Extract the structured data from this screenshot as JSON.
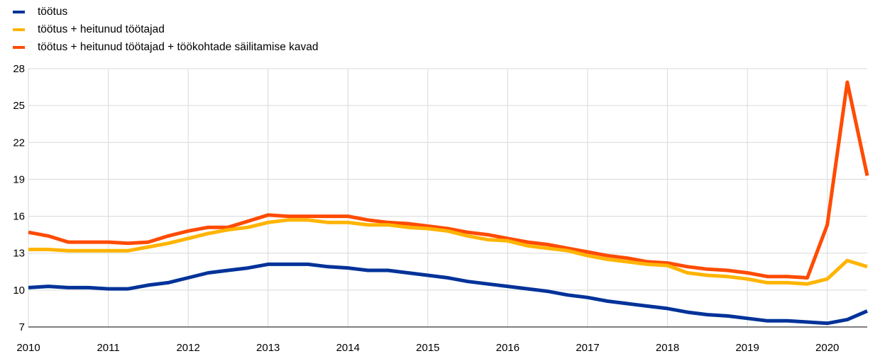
{
  "chart_data": {
    "type": "line",
    "title": "",
    "xlabel": "",
    "ylabel": "",
    "ylim": [
      7,
      28
    ],
    "yticks": [
      7,
      10,
      13,
      16,
      19,
      22,
      25,
      28
    ],
    "xlim": [
      2010,
      2020.5
    ],
    "xticks": [
      "2010",
      "2011",
      "2012",
      "2013",
      "2014",
      "2015",
      "2016",
      "2017",
      "2018",
      "2019",
      "2020"
    ],
    "grid": "vertical+horizontal",
    "legend": "top-left",
    "x": [
      2010.0,
      2010.25,
      2010.5,
      2010.75,
      2011.0,
      2011.25,
      2011.5,
      2011.75,
      2012.0,
      2012.25,
      2012.5,
      2012.75,
      2013.0,
      2013.25,
      2013.5,
      2013.75,
      2014.0,
      2014.25,
      2014.5,
      2014.75,
      2015.0,
      2015.25,
      2015.5,
      2015.75,
      2016.0,
      2016.25,
      2016.5,
      2016.75,
      2017.0,
      2017.25,
      2017.5,
      2017.75,
      2018.0,
      2018.25,
      2018.5,
      2018.75,
      2019.0,
      2019.25,
      2019.5,
      2019.75,
      2020.0,
      2020.25,
      2020.5
    ],
    "series": [
      {
        "name": "töötus",
        "color": "#003299",
        "values": [
          10.2,
          10.3,
          10.2,
          10.2,
          10.1,
          10.1,
          10.4,
          10.6,
          11.0,
          11.4,
          11.6,
          11.8,
          12.1,
          12.1,
          12.1,
          11.9,
          11.8,
          11.6,
          11.6,
          11.4,
          11.2,
          11.0,
          10.7,
          10.5,
          10.3,
          10.1,
          9.9,
          9.6,
          9.4,
          9.1,
          8.9,
          8.7,
          8.5,
          8.2,
          8.0,
          7.9,
          7.7,
          7.5,
          7.5,
          7.4,
          7.3,
          7.6,
          8.3
        ]
      },
      {
        "name": "töötus + heitunud töötajad",
        "color": "#ffb400",
        "values": [
          13.3,
          13.3,
          13.2,
          13.2,
          13.2,
          13.2,
          13.5,
          13.8,
          14.2,
          14.6,
          14.9,
          15.1,
          15.5,
          15.7,
          15.7,
          15.5,
          15.5,
          15.3,
          15.3,
          15.1,
          15.0,
          14.8,
          14.4,
          14.1,
          14.0,
          13.6,
          13.4,
          13.2,
          12.8,
          12.5,
          12.3,
          12.1,
          12.0,
          11.4,
          11.2,
          11.1,
          10.9,
          10.6,
          10.6,
          10.5,
          10.9,
          12.4,
          11.9
        ]
      },
      {
        "name": "töötus + heitunud töötajad + töökohtade säilitamise kavad",
        "color": "#ff4b00",
        "values": [
          14.7,
          14.4,
          13.9,
          13.9,
          13.9,
          13.8,
          13.9,
          14.4,
          14.8,
          15.1,
          15.1,
          15.6,
          16.1,
          16.0,
          16.0,
          16.0,
          16.0,
          15.7,
          15.5,
          15.4,
          15.2,
          15.0,
          14.7,
          14.5,
          14.2,
          13.9,
          13.7,
          13.4,
          13.1,
          12.8,
          12.6,
          12.3,
          12.2,
          11.9,
          11.7,
          11.6,
          11.4,
          11.1,
          11.1,
          11.0,
          15.3,
          26.9,
          19.3
        ]
      }
    ]
  }
}
